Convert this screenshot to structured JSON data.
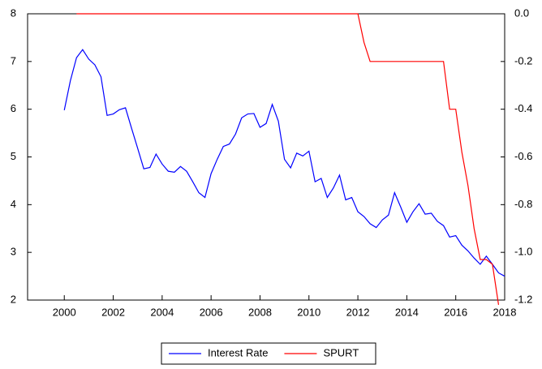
{
  "chart_data": {
    "type": "line",
    "x": [
      2000,
      2000.25,
      2000.5,
      2000.75,
      2001,
      2001.25,
      2001.5,
      2001.75,
      2002,
      2002.25,
      2002.5,
      2002.75,
      2003,
      2003.25,
      2003.5,
      2003.75,
      2004,
      2004.25,
      2004.5,
      2004.75,
      2005,
      2005.25,
      2005.5,
      2005.75,
      2006,
      2006.25,
      2006.5,
      2006.75,
      2007,
      2007.25,
      2007.5,
      2007.75,
      2008,
      2008.25,
      2008.5,
      2008.75,
      2009,
      2009.25,
      2009.5,
      2009.75,
      2010,
      2010.25,
      2010.5,
      2010.75,
      2011,
      2011.25,
      2011.5,
      2011.75,
      2012,
      2012.25,
      2012.5,
      2012.75,
      2013,
      2013.25,
      2013.5,
      2013.75,
      2014,
      2014.25,
      2014.5,
      2014.75,
      2015,
      2015.25,
      2015.5,
      2015.75,
      2016,
      2016.25,
      2016.5,
      2016.75,
      2017,
      2017.25,
      2017.5,
      2017.75,
      2018
    ],
    "series": [
      {
        "name": "Interest Rate",
        "color": "#0000ff",
        "values": [
          5.98,
          6.6,
          7.08,
          7.25,
          7.05,
          6.93,
          6.68,
          5.87,
          5.9,
          5.99,
          6.03,
          5.6,
          5.18,
          4.75,
          4.78,
          5.06,
          4.85,
          4.7,
          4.68,
          4.8,
          4.7,
          4.48,
          4.25,
          4.15,
          4.65,
          4.95,
          5.22,
          5.27,
          5.48,
          5.82,
          5.9,
          5.91,
          5.62,
          5.7,
          6.1,
          5.75,
          4.95,
          4.77,
          5.08,
          5.02,
          5.12,
          4.48,
          4.55,
          4.15,
          4.35,
          4.62,
          4.1,
          4.15,
          3.85,
          3.75,
          3.6,
          3.52,
          3.68,
          3.78,
          4.25,
          3.95,
          3.63,
          3.85,
          4.02,
          3.8,
          3.82,
          3.65,
          3.56,
          3.32,
          3.35,
          3.15,
          3.03,
          2.88,
          2.75,
          2.92,
          2.75,
          2.57,
          2.5
        ]
      },
      {
        "name": "SPURT",
        "color": "#ff0000",
        "axis": "y2",
        "values": [
          null,
          null,
          0,
          0,
          0,
          0,
          0,
          0,
          0,
          0,
          0,
          0,
          0,
          0,
          0,
          0,
          0,
          0,
          0,
          0,
          0,
          0,
          0,
          0,
          0,
          0,
          0,
          0,
          0,
          0,
          0,
          0,
          0,
          0,
          0,
          0,
          0,
          0,
          0,
          0,
          0,
          0,
          0,
          0,
          0,
          0,
          0,
          0,
          0,
          -0.12,
          -0.2,
          -0.2,
          -0.2,
          -0.2,
          -0.2,
          -0.2,
          -0.2,
          -0.2,
          -0.2,
          -0.2,
          -0.2,
          -0.2,
          -0.2,
          -0.4,
          -0.4,
          -0.58,
          -0.72,
          -0.9,
          -1.03,
          -1.03,
          -1.05,
          -1.22,
          null
        ]
      }
    ],
    "xlim": [
      1998.5,
      2018
    ],
    "xticks": [
      2000,
      2002,
      2004,
      2006,
      2008,
      2010,
      2012,
      2014,
      2016,
      2018
    ],
    "ylim": [
      2,
      8
    ],
    "yticks": [
      2,
      3,
      4,
      5,
      6,
      7,
      8
    ],
    "y2lim": [
      -1.2,
      0
    ],
    "y2ticks": [
      {
        "value": -1.2,
        "label": "-1.2"
      },
      {
        "value": -1,
        "label": "-1.0"
      },
      {
        "value": -0.8,
        "label": "-0.8"
      },
      {
        "value": -0.6,
        "label": "-0.6"
      },
      {
        "value": -0.4,
        "label": "-0.4"
      },
      {
        "value": -0.2,
        "label": "-0.2"
      },
      {
        "value": 0,
        "label": "0.0"
      }
    ],
    "legend": "bottom"
  }
}
